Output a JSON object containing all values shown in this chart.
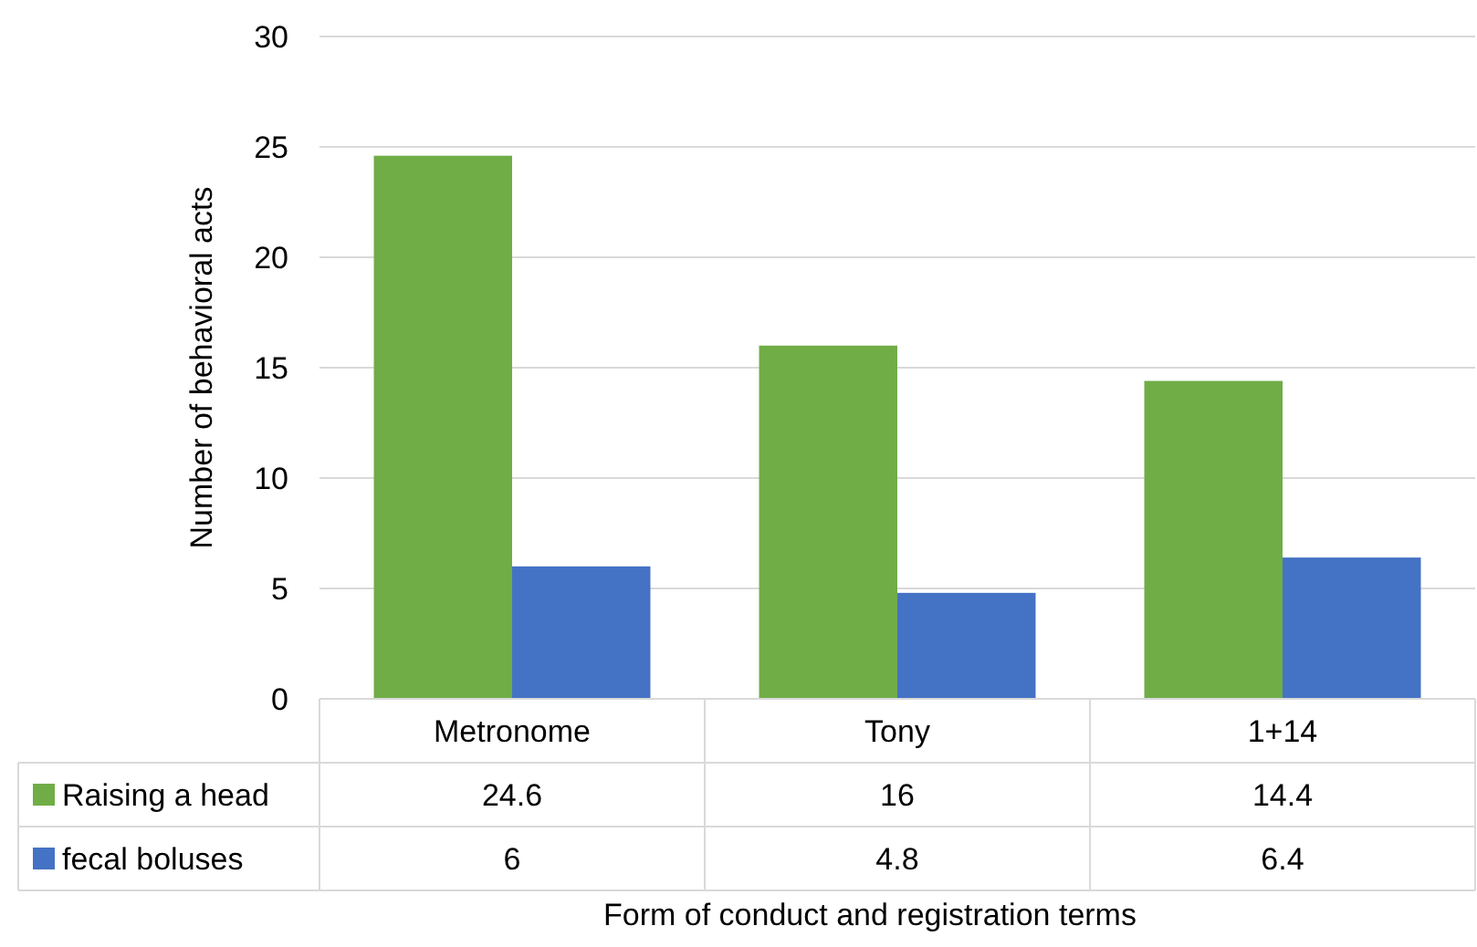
{
  "chart_data": {
    "type": "bar",
    "xlabel": "Form of conduct and registration terms",
    "ylabel": "Number of behavioral acts",
    "categories": [
      "Metronome",
      "Tony",
      "1+14"
    ],
    "series": [
      {
        "name": "Raising a head",
        "color": "#70ad47",
        "values": [
          24.6,
          16,
          14.4
        ]
      },
      {
        "name": "fecal boluses",
        "color": "#4472c4",
        "values": [
          6,
          4.8,
          6.4
        ]
      }
    ],
    "ylim": [
      0,
      30
    ],
    "yticks": [
      0,
      5,
      10,
      15,
      20,
      25,
      30
    ],
    "grid": "y",
    "legend": "bottom",
    "data_labels": true
  }
}
